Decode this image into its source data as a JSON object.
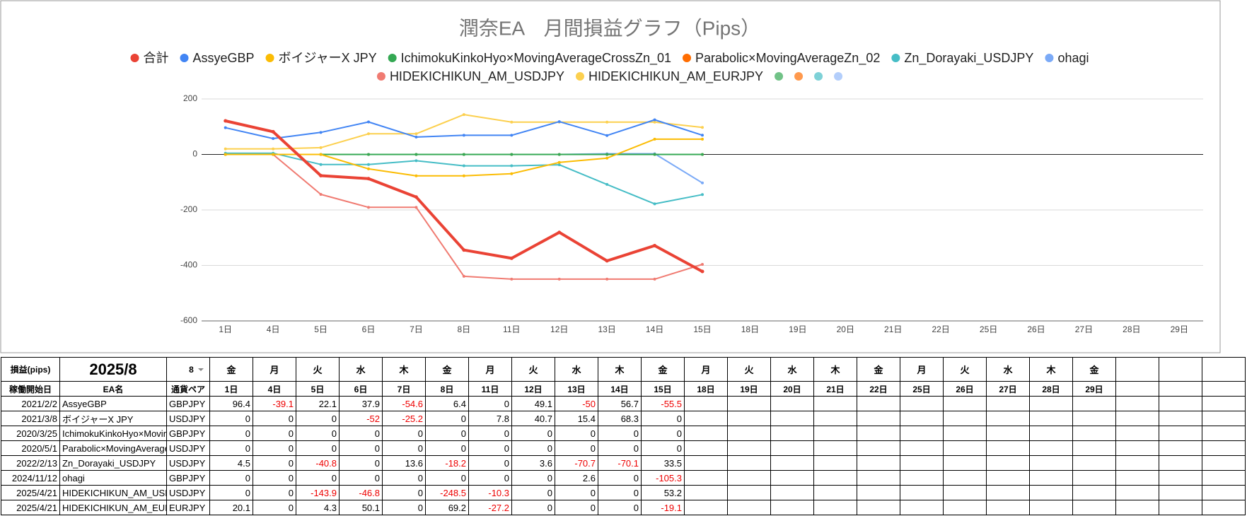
{
  "chart_data": {
    "type": "line",
    "title": "潤奈EA　月間損益グラフ（Pips）",
    "categories": [
      "1日",
      "4日",
      "5日",
      "6日",
      "7日",
      "8日",
      "11日",
      "12日",
      "13日",
      "14日",
      "15日",
      "18日",
      "19日",
      "20日",
      "21日",
      "22日",
      "25日",
      "26日",
      "27日",
      "28日",
      "29日"
    ],
    "ylim": [
      -600,
      200
    ],
    "yticks": [
      -600,
      -400,
      -200,
      0,
      200
    ],
    "grid": true,
    "series": [
      {
        "name": "合計",
        "color": "#ea4335",
        "values": [
          121,
          81.9,
          -76.4,
          -87.2,
          -153.4,
          -344.5,
          -374.2,
          -280.8,
          -383.5,
          -328.6,
          -421.8,
          null,
          null,
          null,
          null,
          null,
          null,
          null,
          null,
          null,
          null
        ]
      },
      {
        "name": "AssyeGBP",
        "color": "#4285f4",
        "values": [
          96.4,
          57.3,
          79.4,
          117.3,
          62.7,
          69.1,
          69.1,
          118.2,
          68.2,
          124.9,
          69.4,
          null,
          null,
          null,
          null,
          null,
          null,
          null,
          null,
          null,
          null
        ]
      },
      {
        "name": "ボイジャーX JPY",
        "color": "#fbbc04",
        "values": [
          0,
          0,
          0,
          -52,
          -77.2,
          -77.2,
          -69.4,
          -28.7,
          -13.3,
          55,
          55,
          null,
          null,
          null,
          null,
          null,
          null,
          null,
          null,
          null,
          null
        ]
      },
      {
        "name": "IchimokuKinkoHyo×MovingAverageCrossZn_01",
        "color": "#34a853",
        "values": [
          0,
          0,
          0,
          0,
          0,
          0,
          0,
          0,
          0,
          0,
          0,
          null,
          null,
          null,
          null,
          null,
          null,
          null,
          null,
          null,
          null
        ]
      },
      {
        "name": "Parabolic×MovingAverageZn_02",
        "color": "#ff6d01",
        "values": [
          0,
          0,
          0,
          0,
          0,
          0,
          0,
          0,
          0,
          0,
          0,
          null,
          null,
          null,
          null,
          null,
          null,
          null,
          null,
          null,
          null
        ]
      },
      {
        "name": "Zn_Dorayaki_USDJPY",
        "color": "#46bdc6",
        "values": [
          4.5,
          4.5,
          -36.3,
          -36.3,
          -22.7,
          -40.9,
          -40.9,
          -37.3,
          -108,
          -178.1,
          -144.6,
          null,
          null,
          null,
          null,
          null,
          null,
          null,
          null,
          null,
          null
        ]
      },
      {
        "name": "ohagi",
        "color": "#7baaf7",
        "values": [
          0,
          0,
          0,
          0,
          0,
          0,
          0,
          0,
          2.6,
          2.6,
          -102.7,
          null,
          null,
          null,
          null,
          null,
          null,
          null,
          null,
          null,
          null
        ]
      },
      {
        "name": "HIDEKICHIKUN_AM_USDJPY",
        "color": "#f07b72",
        "values": [
          0,
          0,
          -143.9,
          -190.7,
          -190.7,
          -439.2,
          -449.5,
          -449.5,
          -449.5,
          -449.5,
          -396.3,
          null,
          null,
          null,
          null,
          null,
          null,
          null,
          null,
          null,
          null
        ]
      },
      {
        "name": "HIDEKICHIKUN_AM_EURJPY",
        "color": "#fcd04f",
        "values": [
          20.1,
          20.1,
          24.4,
          74.5,
          74.5,
          143.7,
          116.5,
          116.5,
          116.5,
          116.5,
          97.4,
          null,
          null,
          null,
          null,
          null,
          null,
          null,
          null,
          null,
          null
        ]
      },
      {
        "name": null,
        "color": "#71c287",
        "values": [
          null,
          null,
          null,
          null,
          null,
          null,
          null,
          null,
          null,
          null,
          null,
          null,
          null,
          null,
          null,
          null,
          null,
          null,
          null,
          null,
          null
        ]
      },
      {
        "name": null,
        "color": "#ff994d",
        "values": [
          null,
          null,
          null,
          null,
          null,
          null,
          null,
          null,
          null,
          null,
          null,
          null,
          null,
          null,
          null,
          null,
          null,
          null,
          null,
          null,
          null
        ]
      },
      {
        "name": null,
        "color": "#7ed1d7",
        "values": [
          null,
          null,
          null,
          null,
          null,
          null,
          null,
          null,
          null,
          null,
          null,
          null,
          null,
          null,
          null,
          null,
          null,
          null,
          null,
          null,
          null
        ]
      },
      {
        "name": null,
        "color": "#b3cefb",
        "values": [
          null,
          null,
          null,
          null,
          null,
          null,
          null,
          null,
          null,
          null,
          null,
          null,
          null,
          null,
          null,
          null,
          null,
          null,
          null,
          null,
          null
        ]
      }
    ]
  },
  "table": {
    "header": {
      "label": "損益(pips)",
      "month": "2025/8",
      "month_select": "8",
      "weekdays": [
        "金",
        "月",
        "火",
        "水",
        "木",
        "金",
        "月",
        "火",
        "水",
        "木",
        "金",
        "月",
        "火",
        "水",
        "木",
        "金",
        "月",
        "火",
        "水",
        "木",
        "金"
      ],
      "columns": [
        "稼働開始日",
        "EA名",
        "通貨ペア"
      ]
    },
    "rows": [
      {
        "start": "2021/2/2",
        "pair": "GBPJPY",
        "values": [
          96.4,
          -39.1,
          22.1,
          37.9,
          -54.6,
          6.4,
          0,
          49.1,
          -50,
          56.7,
          -55.5
        ]
      },
      {
        "start": "2021/3/8",
        "pair": "USDJPY",
        "values": [
          0,
          0,
          0,
          -52,
          -25.2,
          0,
          7.8,
          40.7,
          15.4,
          68.3,
          0
        ]
      },
      {
        "start": "2020/3/25",
        "pair": "GBPJPY",
        "values": [
          0,
          0,
          0,
          0,
          0,
          0,
          0,
          0,
          0,
          0,
          0
        ]
      },
      {
        "start": "2020/5/1",
        "pair": "USDJPY",
        "values": [
          0,
          0,
          0,
          0,
          0,
          0,
          0,
          0,
          0,
          0,
          0
        ]
      },
      {
        "start": "2022/2/13",
        "pair": "USDJPY",
        "values": [
          4.5,
          0,
          -40.8,
          0,
          13.6,
          -18.2,
          0,
          3.6,
          -70.7,
          -70.1,
          33.5
        ]
      },
      {
        "start": "2024/11/12",
        "pair": "GBPJPY",
        "values": [
          0,
          0,
          0,
          0,
          0,
          0,
          0,
          0,
          2.6,
          0,
          -105.3
        ]
      },
      {
        "start": "2025/4/21",
        "pair": "USDJPY",
        "values": [
          0,
          0,
          -143.9,
          -46.8,
          0,
          -248.5,
          -10.3,
          0,
          0,
          0,
          53.2
        ]
      },
      {
        "start": "2025/4/21",
        "pair": "EURJPY",
        "values": [
          20.1,
          0,
          4.3,
          50.1,
          0,
          69.2,
          -27.2,
          0,
          0,
          0,
          -19.1
        ]
      }
    ]
  }
}
